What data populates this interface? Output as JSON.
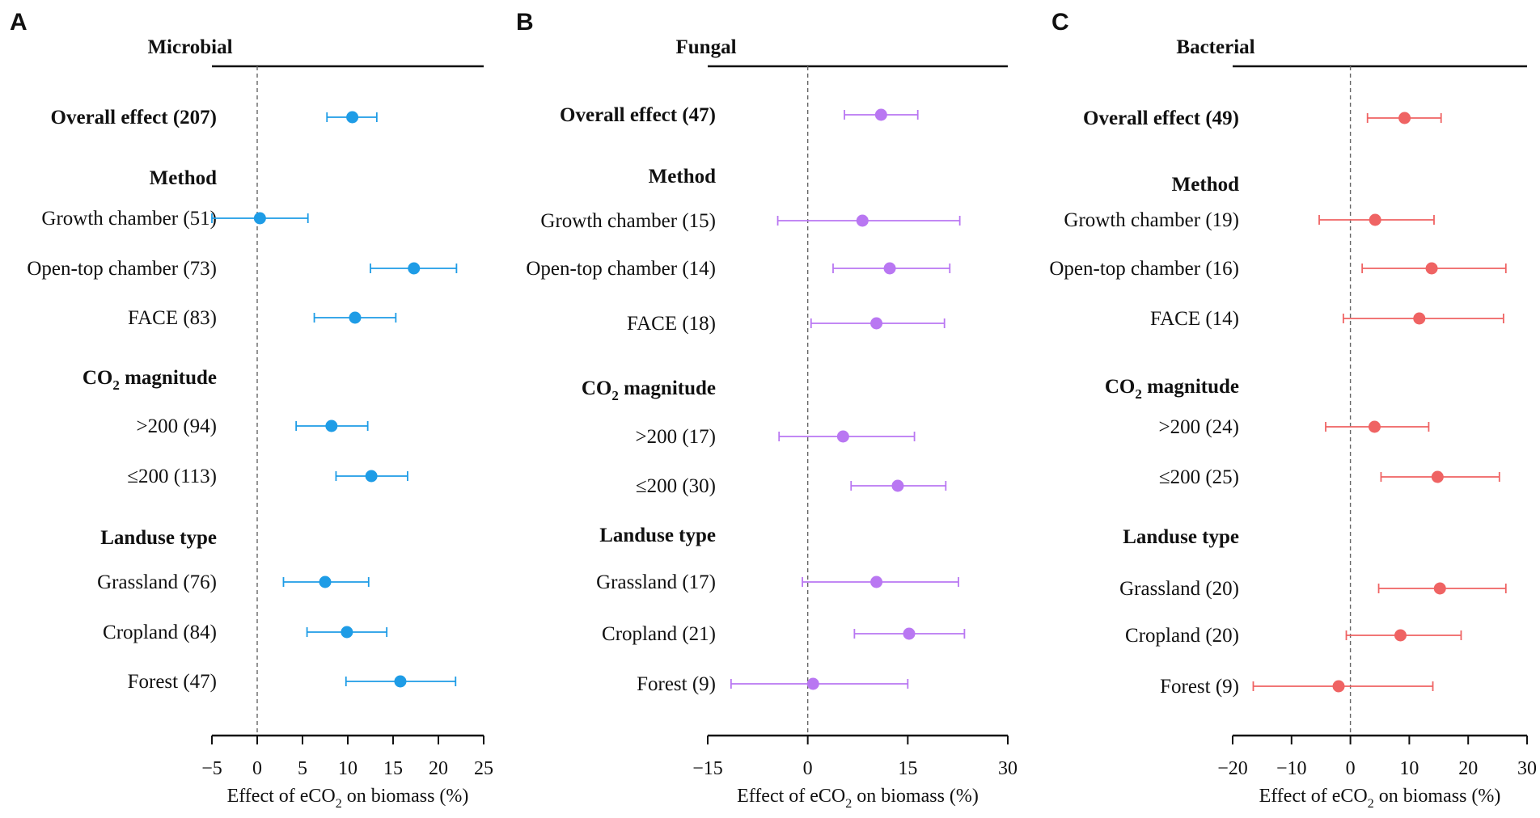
{
  "figure": {
    "panels": [
      "A",
      "B",
      "C"
    ]
  },
  "chart_data": [
    {
      "type": "forest",
      "panel": "A",
      "title": "Microbial",
      "color": "#1e9ce6",
      "xlabel_pre": "Effect of eCO",
      "xlabel_sub": "2",
      "xlabel_post": " on biomass (%)",
      "xlim": [
        -5,
        25
      ],
      "xticks": [
        -5,
        0,
        5,
        10,
        15,
        20,
        25
      ],
      "xtick_labels": [
        "−5",
        "0",
        "5",
        "10",
        "15",
        "20",
        "25"
      ],
      "rows": [
        {
          "label": "Overall effect (207)",
          "header": true,
          "mean": 10.5,
          "lo": 7.7,
          "hi": 13.2
        },
        {
          "label": "Method",
          "header": true
        },
        {
          "label": "Growth chamber (51)",
          "mean": 0.3,
          "lo": -5.0,
          "hi": 5.6
        },
        {
          "label": "Open-top chamber (73)",
          "mean": 17.3,
          "lo": 12.5,
          "hi": 22.0
        },
        {
          "label": "FACE (83)",
          "mean": 10.8,
          "lo": 6.3,
          "hi": 15.3
        },
        {
          "label": "CO2 magnitude",
          "header": true,
          "label_pre": "CO",
          "label_sub": "2",
          "label_post": " magnitude"
        },
        {
          "label": ">200 (94)",
          "mean": 8.2,
          "lo": 4.3,
          "hi": 12.2
        },
        {
          "label": "≤200 (113)",
          "mean": 12.6,
          "lo": 8.7,
          "hi": 16.6
        },
        {
          "label": "Landuse type",
          "header": true
        },
        {
          "label": "Grassland (76)",
          "mean": 7.5,
          "lo": 2.9,
          "hi": 12.3
        },
        {
          "label": "Cropland (84)",
          "mean": 9.9,
          "lo": 5.5,
          "hi": 14.3
        },
        {
          "label": "Forest (47)",
          "mean": 15.8,
          "lo": 9.8,
          "hi": 21.9
        }
      ]
    },
    {
      "type": "forest",
      "panel": "B",
      "title": "Fungal",
      "color": "#b977f2",
      "xlabel_pre": "Effect of eCO",
      "xlabel_sub": "2",
      "xlabel_post": " on biomass (%)",
      "xlim": [
        -15,
        30
      ],
      "xticks": [
        -15,
        0,
        15,
        30
      ],
      "xtick_labels": [
        "−15",
        "0",
        "15",
        "30"
      ],
      "rows": [
        {
          "label": "Overall effect (47)",
          "header": true,
          "mean": 11.0,
          "lo": 5.5,
          "hi": 16.5
        },
        {
          "label": "Method",
          "header": true
        },
        {
          "label": "Growth chamber (15)",
          "mean": 8.2,
          "lo": -4.5,
          "hi": 22.8
        },
        {
          "label": "Open-top chamber (14)",
          "mean": 12.3,
          "lo": 3.8,
          "hi": 21.3
        },
        {
          "label": "FACE (18)",
          "mean": 10.3,
          "lo": 0.5,
          "hi": 20.5
        },
        {
          "label": "CO2 magnitude",
          "header": true,
          "label_pre": "CO",
          "label_sub": "2",
          "label_post": " magnitude"
        },
        {
          "label": ">200 (17)",
          "mean": 5.3,
          "lo": -4.3,
          "hi": 16.0
        },
        {
          "label": "≤200 (30)",
          "mean": 13.5,
          "lo": 6.5,
          "hi": 20.7
        },
        {
          "label": "Landuse type",
          "header": true
        },
        {
          "label": "Grassland (17)",
          "mean": 10.3,
          "lo": -0.8,
          "hi": 22.6
        },
        {
          "label": "Cropland (21)",
          "mean": 15.2,
          "lo": 7.0,
          "hi": 23.5
        },
        {
          "label": "Forest (9)",
          "mean": 0.8,
          "lo": -11.5,
          "hi": 15.0
        }
      ]
    },
    {
      "type": "forest",
      "panel": "C",
      "title": "Bacterial",
      "color": "#ef6363",
      "xlabel_pre": "Effect of eCO",
      "xlabel_sub": "2",
      "xlabel_post": " on biomass (%)",
      "xlim": [
        -20,
        30
      ],
      "xticks": [
        -20,
        -10,
        0,
        10,
        20,
        30
      ],
      "xtick_labels": [
        "−20",
        "−10",
        "0",
        "10",
        "20",
        "30"
      ],
      "rows": [
        {
          "label": "Overall effect (49)",
          "header": true,
          "mean": 9.2,
          "lo": 2.9,
          "hi": 15.4
        },
        {
          "label": "Method",
          "header": true
        },
        {
          "label": "Growth chamber (19)",
          "mean": 4.2,
          "lo": -5.3,
          "hi": 14.2
        },
        {
          "label": "Open-top chamber (16)",
          "mean": 13.8,
          "lo": 2.0,
          "hi": 26.4
        },
        {
          "label": "FACE (14)",
          "mean": 11.7,
          "lo": -1.2,
          "hi": 26.0
        },
        {
          "label": "CO2 magnitude",
          "header": true,
          "label_pre": "CO",
          "label_sub": "2",
          "label_post": " magnitude"
        },
        {
          "label": ">200 (24)",
          "mean": 4.1,
          "lo": -4.2,
          "hi": 13.3
        },
        {
          "label": "≤200 (25)",
          "mean": 14.8,
          "lo": 5.2,
          "hi": 25.3
        },
        {
          "label": "Landuse type",
          "header": true
        },
        {
          "label": "Grassland (20)",
          "mean": 15.2,
          "lo": 4.8,
          "hi": 26.4
        },
        {
          "label": "Cropland (20)",
          "mean": 8.5,
          "lo": -0.7,
          "hi": 18.8
        },
        {
          "label": "Forest (9)",
          "mean": -2.0,
          "lo": -16.5,
          "hi": 14.0
        }
      ]
    }
  ]
}
